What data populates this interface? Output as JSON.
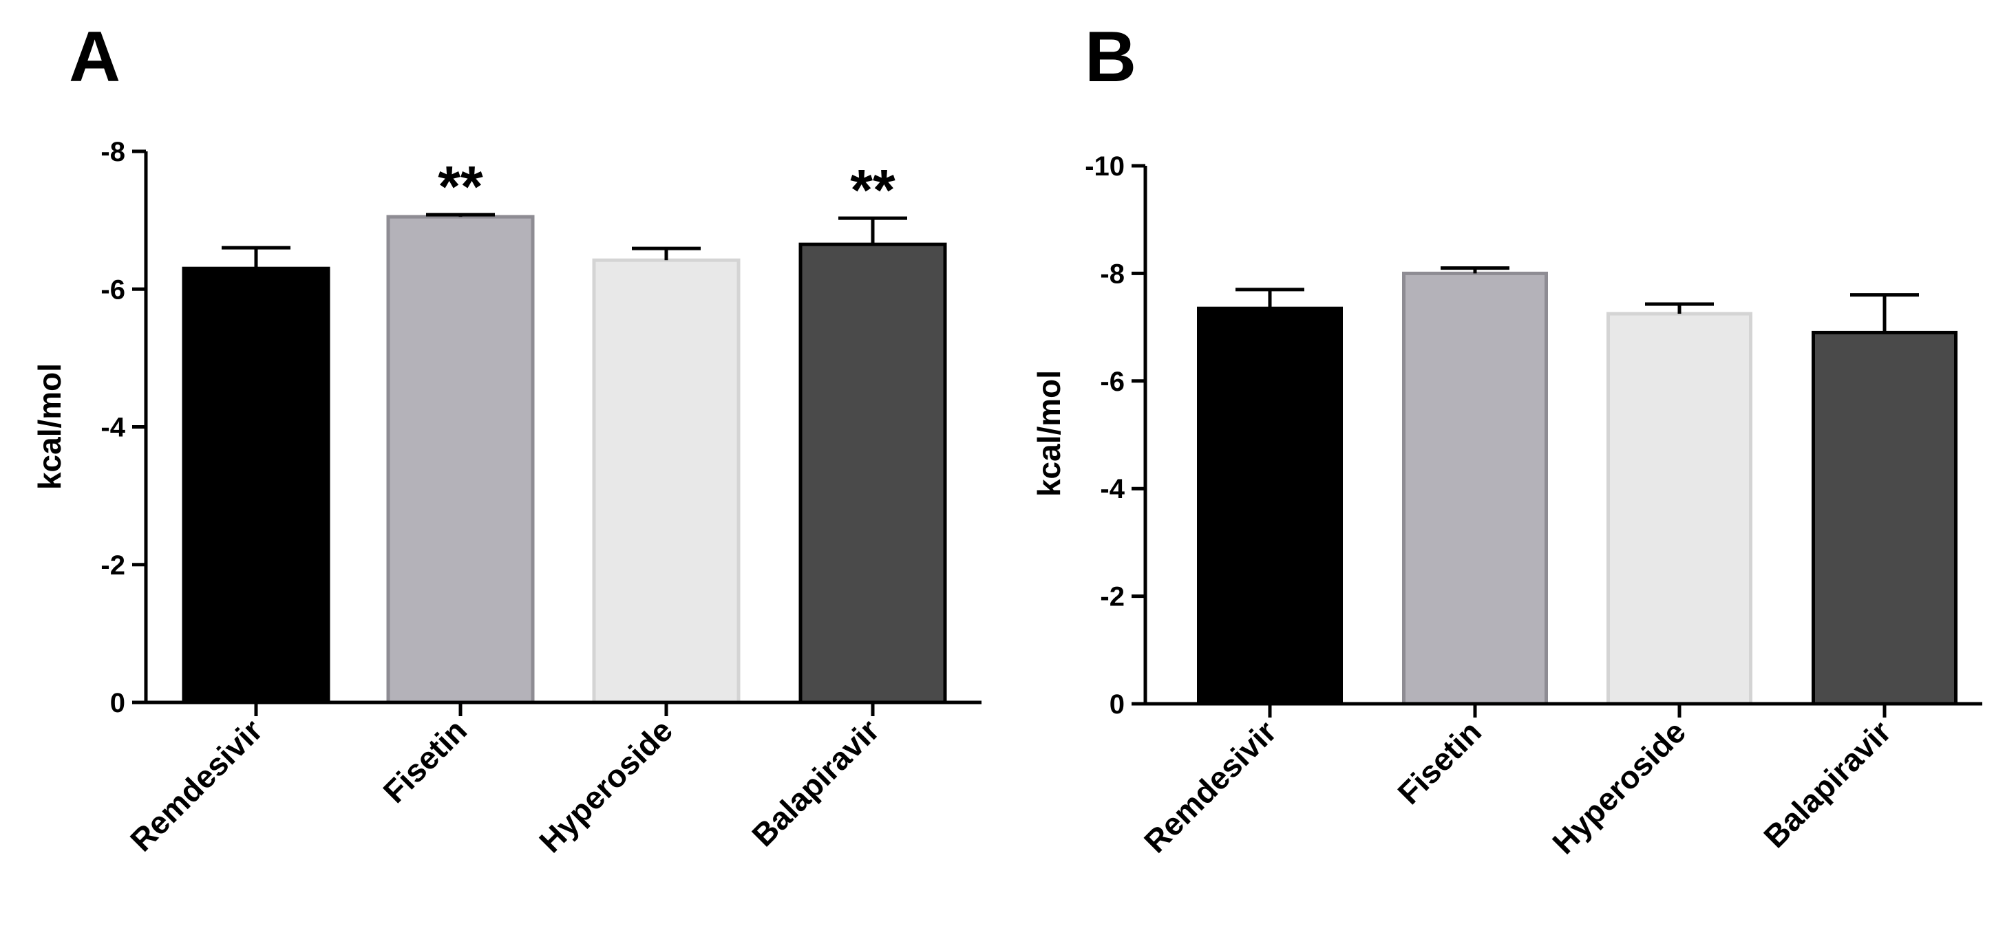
{
  "chart_data": [
    {
      "panel": "A",
      "type": "bar",
      "title": "",
      "xlabel": "",
      "ylabel": "kcal/mol",
      "categories": [
        "Remdesivir",
        "Fisetin",
        "Hyperoside",
        "Balapiravir"
      ],
      "values": [
        -6.3,
        -7.05,
        -6.42,
        -6.65
      ],
      "errors": [
        0.3,
        0.03,
        0.17,
        0.38
      ],
      "annotations": [
        "",
        "**",
        "",
        "**"
      ],
      "colors": [
        "#000000",
        "#b4b2b9",
        "#e8e8e8",
        "#4a4a4a"
      ],
      "ylim": [
        0,
        -8
      ],
      "yticks": [
        "-8",
        "-6",
        "-4",
        "-2",
        "0"
      ],
      "ytick_values": [
        -8,
        -6,
        -4,
        -2,
        0
      ]
    },
    {
      "panel": "B",
      "type": "bar",
      "title": "",
      "xlabel": "",
      "ylabel": "kcal/mol",
      "categories": [
        "Remdesivir",
        "Fisetin",
        "Hyperoside",
        "Balapiravir"
      ],
      "values": [
        -7.35,
        -8.0,
        -7.25,
        -6.9
      ],
      "errors": [
        0.35,
        0.1,
        0.18,
        0.7
      ],
      "annotations": [
        "",
        "",
        "",
        ""
      ],
      "colors": [
        "#000000",
        "#b4b2b9",
        "#e8e8e8",
        "#4a4a4a"
      ],
      "ylim": [
        0,
        -10
      ],
      "yticks": [
        "-10",
        "-8",
        "-6",
        "-4",
        "-2",
        "0"
      ],
      "ytick_values": [
        -10,
        -8,
        -6,
        -4,
        -2,
        0
      ]
    }
  ]
}
